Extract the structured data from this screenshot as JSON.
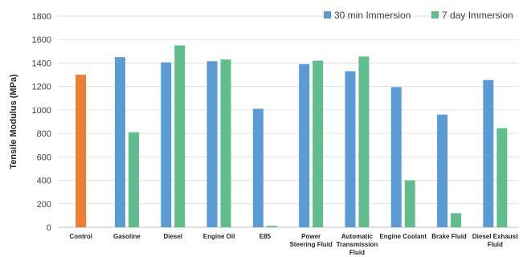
{
  "chart_data": {
    "type": "bar",
    "ylabel": "Tensile Modulus (MPa)",
    "xlabel": "",
    "ylim": [
      0,
      1800
    ],
    "ytick_step": 200,
    "grid": true,
    "legend_position": "top-right",
    "categories": [
      [
        "Control"
      ],
      [
        "Gasoline"
      ],
      [
        "Diesel"
      ],
      [
        "Engine Oil"
      ],
      [
        "E85"
      ],
      [
        "Power",
        "Steering Fluid"
      ],
      [
        "Automatic",
        "Transmission",
        "Fluid"
      ],
      [
        "Engine Coolant"
      ],
      [
        "Brake Fluid"
      ],
      [
        "Diesel Exhaust",
        "Fluid"
      ]
    ],
    "control": {
      "value": 1300,
      "color": "#ED7D31"
    },
    "series": [
      {
        "name": "30 min Immersion",
        "color": "#5B9BD5",
        "values": [
          null,
          1450,
          1405,
          1415,
          1010,
          1390,
          1330,
          1195,
          960,
          1255
        ]
      },
      {
        "name": "7 day Immersion",
        "color": "#5FBE8C",
        "values": [
          null,
          810,
          1550,
          1430,
          12,
          1420,
          1455,
          400,
          120,
          845
        ]
      }
    ]
  }
}
